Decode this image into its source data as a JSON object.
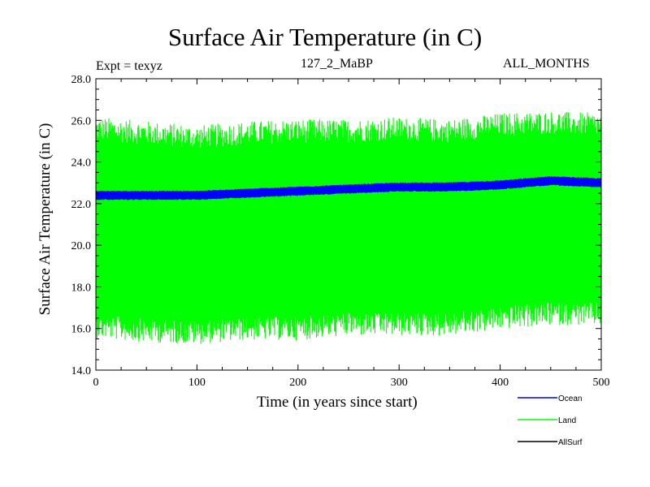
{
  "chart_data": {
    "type": "line",
    "title": "Surface Air Temperature (in C)",
    "expt_label": "Expt = texyz",
    "subtitle": "127_2_MaBP",
    "period_label": "ALL_MONTHS",
    "xlabel": "Time (in years since start)",
    "ylabel": "Surface Air Temperature (in C)",
    "xlim": [
      0,
      500
    ],
    "ylim": [
      14.0,
      28.0
    ],
    "xticks": [
      0,
      100,
      200,
      300,
      400,
      500
    ],
    "xtick_labels": [
      "0",
      "100",
      "200",
      "300",
      "400",
      "500"
    ],
    "yticks": [
      14.0,
      16.0,
      18.0,
      20.0,
      22.0,
      24.0,
      26.0,
      28.0
    ],
    "ytick_labels": [
      "14.0",
      "16.0",
      "18.0",
      "20.0",
      "22.0",
      "24.0",
      "26.0",
      "28.0"
    ],
    "grid": false,
    "legend_position": "bottom-right, below plot",
    "series": [
      {
        "name": "Land",
        "color": "#00ff00",
        "description": "monthly oscillation envelope",
        "x": [
          0,
          50,
          100,
          150,
          200,
          250,
          300,
          350,
          400,
          450,
          500
        ],
        "max": [
          25.6,
          25.4,
          25.2,
          25.4,
          25.5,
          25.5,
          25.6,
          25.5,
          25.8,
          25.9,
          25.8
        ],
        "min": [
          16.1,
          15.9,
          15.8,
          16.0,
          16.0,
          16.2,
          16.2,
          16.2,
          16.5,
          16.7,
          16.7
        ]
      },
      {
        "name": "Ocean",
        "color": "#0000ff",
        "description": "monthly oscillation envelope",
        "x": [
          0,
          50,
          100,
          150,
          200,
          250,
          300,
          350,
          400,
          450,
          500
        ],
        "max": [
          22.6,
          22.6,
          22.6,
          22.7,
          22.8,
          22.9,
          23.0,
          23.0,
          23.1,
          23.3,
          23.2
        ],
        "min": [
          22.2,
          22.2,
          22.2,
          22.3,
          22.4,
          22.5,
          22.6,
          22.6,
          22.7,
          22.9,
          22.8
        ]
      },
      {
        "name": "AllSurf",
        "color": "#000000",
        "description": "not visible in plot area (legend only)"
      }
    ]
  }
}
